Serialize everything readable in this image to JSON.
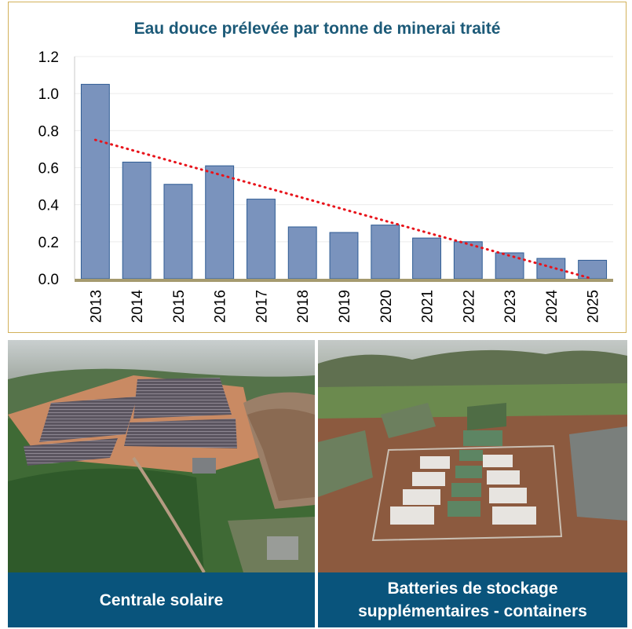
{
  "chart_data": {
    "type": "bar",
    "title": "Eau douce prélevée par tonne de minerai traité",
    "categories": [
      "2013",
      "2014",
      "2015",
      "2016",
      "2017",
      "2018",
      "2019",
      "2020",
      "2021",
      "2022",
      "2023",
      "2024",
      "2025"
    ],
    "values": [
      1.05,
      0.63,
      0.51,
      0.61,
      0.43,
      0.28,
      0.25,
      0.29,
      0.22,
      0.2,
      0.14,
      0.11,
      0.1
    ],
    "ylim": [
      0,
      1.2
    ],
    "yticks": [
      "0.0",
      "0.2",
      "0.4",
      "0.6",
      "0.8",
      "1.0",
      "1.2"
    ],
    "trendline": {
      "style": "dotted",
      "color": "#e8141b",
      "start_value": 0.75,
      "end_value": 0.0
    },
    "grid": true,
    "bar_color": "#7a93bd",
    "bar_edge_color": "#2f5c94",
    "baseline_color": "#a59a6f"
  },
  "photos": {
    "left_caption": "Centrale solaire",
    "right_caption_line1": "Batteries de stockage",
    "right_caption_line2": "supplémentaires - containers"
  },
  "colors": {
    "caption_bg": "#09547c",
    "title": "#1c5a78",
    "panel_border": "#d2b15a"
  }
}
